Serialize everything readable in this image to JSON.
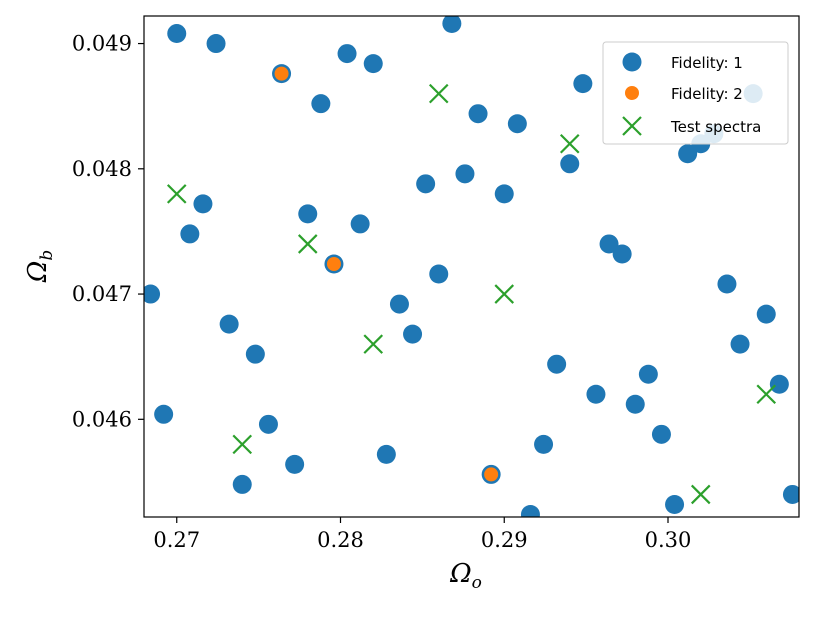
{
  "chart_data": {
    "type": "scatter",
    "xlabel": "Ω",
    "xlabel_sub": "o",
    "ylabel": "Ω",
    "ylabel_sub": "b",
    "xlim": [
      0.268,
      0.308
    ],
    "ylim": [
      0.04522,
      0.04922
    ],
    "xticks": [
      0.27,
      0.28,
      0.29,
      0.3
    ],
    "xtick_labels": [
      "0.27",
      "0.28",
      "0.29",
      "0.30"
    ],
    "yticks": [
      0.046,
      0.047,
      0.048,
      0.049
    ],
    "ytick_labels": [
      "0.046",
      "0.047",
      "0.048",
      "0.049"
    ],
    "grid": false,
    "legend_position": "top-right",
    "series": [
      {
        "name": "Fidelity: 1",
        "marker": "circle",
        "color": "#1f77b4",
        "points": [
          [
            0.27,
            0.04908
          ],
          [
            0.2724,
            0.049
          ],
          [
            0.2764,
            0.04876
          ],
          [
            0.2788,
            0.04852
          ],
          [
            0.2804,
            0.04892
          ],
          [
            0.282,
            0.04884
          ],
          [
            0.2868,
            0.04916
          ],
          [
            0.2884,
            0.04844
          ],
          [
            0.2908,
            0.04836
          ],
          [
            0.2948,
            0.04868
          ],
          [
            0.3052,
            0.0486
          ],
          [
            0.3028,
            0.04828
          ],
          [
            0.302,
            0.0482
          ],
          [
            0.3012,
            0.04812
          ],
          [
            0.294,
            0.04804
          ],
          [
            0.2876,
            0.04796
          ],
          [
            0.2852,
            0.04788
          ],
          [
            0.29,
            0.0478
          ],
          [
            0.2716,
            0.04772
          ],
          [
            0.278,
            0.04764
          ],
          [
            0.2812,
            0.04756
          ],
          [
            0.2708,
            0.04748
          ],
          [
            0.2964,
            0.0474
          ],
          [
            0.2972,
            0.04732
          ],
          [
            0.2796,
            0.04724
          ],
          [
            0.286,
            0.04716
          ],
          [
            0.3036,
            0.04708
          ],
          [
            0.2684,
            0.047
          ],
          [
            0.2836,
            0.04692
          ],
          [
            0.306,
            0.04684
          ],
          [
            0.2732,
            0.04676
          ],
          [
            0.2844,
            0.04668
          ],
          [
            0.3044,
            0.0466
          ],
          [
            0.2748,
            0.04652
          ],
          [
            0.2932,
            0.04644
          ],
          [
            0.2988,
            0.04636
          ],
          [
            0.3068,
            0.04628
          ],
          [
            0.2956,
            0.0462
          ],
          [
            0.298,
            0.04612
          ],
          [
            0.2692,
            0.04604
          ],
          [
            0.2756,
            0.04596
          ],
          [
            0.2996,
            0.04588
          ],
          [
            0.2924,
            0.0458
          ],
          [
            0.2828,
            0.04572
          ],
          [
            0.2772,
            0.04564
          ],
          [
            0.2892,
            0.04556
          ],
          [
            0.274,
            0.04548
          ],
          [
            0.3076,
            0.0454
          ],
          [
            0.3004,
            0.04532
          ],
          [
            0.2916,
            0.04524
          ]
        ]
      },
      {
        "name": "Fidelity: 2",
        "marker": "circle",
        "color": "#ff7f0e",
        "points": [
          [
            0.2764,
            0.04876
          ],
          [
            0.2796,
            0.04724
          ],
          [
            0.2892,
            0.04556
          ]
        ]
      },
      {
        "name": "Test spectra",
        "marker": "x",
        "color": "#2ca02c",
        "points": [
          [
            0.286,
            0.0486
          ],
          [
            0.294,
            0.0482
          ],
          [
            0.27,
            0.0478
          ],
          [
            0.278,
            0.0474
          ],
          [
            0.29,
            0.047
          ],
          [
            0.282,
            0.0466
          ],
          [
            0.274,
            0.0458
          ],
          [
            0.306,
            0.0462
          ],
          [
            0.302,
            0.0454
          ]
        ]
      }
    ]
  }
}
